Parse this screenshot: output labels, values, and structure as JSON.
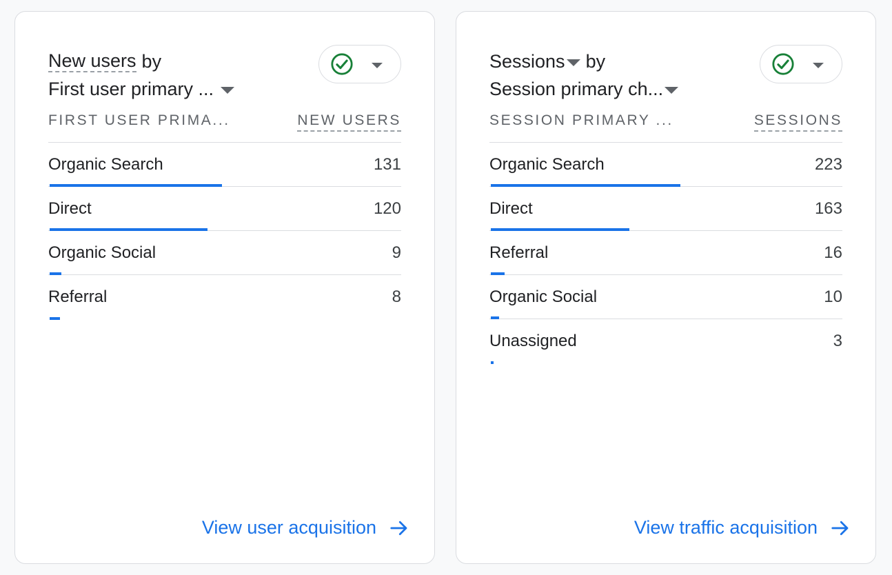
{
  "cards": [
    {
      "title_metric": "New users",
      "title_by": "by",
      "title_dimension": "First user primary ...",
      "status_icon": "check-circle-icon",
      "header": {
        "dimension": "FIRST USER PRIMA...",
        "metric": "NEW USERS"
      },
      "max_value": 131,
      "rows": [
        {
          "label": "Organic Search",
          "value": "131",
          "share": 1.0
        },
        {
          "label": "Direct",
          "value": "120",
          "share": 0.916
        },
        {
          "label": "Organic Social",
          "value": "9",
          "share": 0.069
        },
        {
          "label": "Referral",
          "value": "8",
          "share": 0.061
        }
      ],
      "link_label": "View user acquisition"
    },
    {
      "title_metric": "Sessions",
      "title_by": "by",
      "title_dimension": "Session primary ch...",
      "status_icon": "check-circle-icon",
      "header": {
        "dimension": "SESSION PRIMARY ...",
        "metric": "SESSIONS"
      },
      "max_value": 223,
      "rows": [
        {
          "label": "Organic Search",
          "value": "223",
          "share": 1.0
        },
        {
          "label": "Direct",
          "value": "163",
          "share": 0.731
        },
        {
          "label": "Referral",
          "value": "16",
          "share": 0.072
        },
        {
          "label": "Organic Social",
          "value": "10",
          "share": 0.045
        },
        {
          "label": "Unassigned",
          "value": "3",
          "share": 0.013
        }
      ],
      "link_label": "View traffic acquisition"
    }
  ],
  "colors": {
    "accent": "#1a73e8",
    "check_green": "#188038",
    "border": "#dadce0",
    "muted_text": "#5f6368"
  }
}
